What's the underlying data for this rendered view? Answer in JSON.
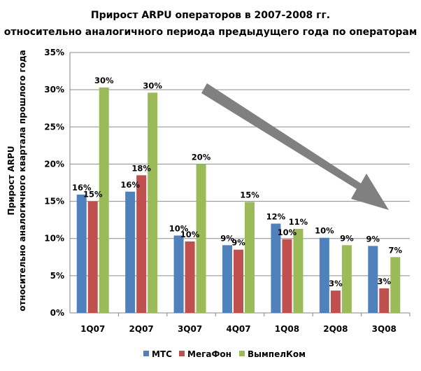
{
  "chart_data": {
    "type": "bar",
    "title": [
      "Прирост ARPU операторов в 2007-2008 гг.",
      "относительно аналогичного периода предыдущего года по операторам"
    ],
    "xlabel": "",
    "ylabel": [
      "Прирост ARPU",
      "относительно аналогичного квартала прошлого года"
    ],
    "categories": [
      "1Q07",
      "2Q07",
      "3Q07",
      "4Q07",
      "1Q08",
      "2Q08",
      "3Q08"
    ],
    "ylim": [
      0,
      0.35
    ],
    "yticks": [
      0,
      0.05,
      0.1,
      0.15,
      0.2,
      0.25,
      0.3,
      0.35
    ],
    "ytick_labels": [
      "0%",
      "5%",
      "10%",
      "15%",
      "20%",
      "25%",
      "30%",
      "35%"
    ],
    "grid": true,
    "legend_position": "bottom",
    "series": [
      {
        "name": "МТС",
        "color": "#4f81bd",
        "values": [
          0.159,
          0.163,
          0.104,
          0.091,
          0.12,
          0.101,
          0.09
        ],
        "labels": [
          "16%",
          "16%",
          "10%",
          "9%",
          "12%",
          "10%",
          "9%"
        ]
      },
      {
        "name": "МегаФон",
        "color": "#c0504d",
        "values": [
          0.15,
          0.185,
          0.096,
          0.085,
          0.099,
          0.03,
          0.033
        ],
        "labels": [
          "15%",
          "18%",
          "10%",
          "9%",
          "10%",
          "3%",
          "3%"
        ]
      },
      {
        "name": "ВымпелКом",
        "color": "#9bbb59",
        "values": [
          0.303,
          0.296,
          0.2,
          0.149,
          0.113,
          0.091,
          0.075
        ],
        "labels": [
          "30%",
          "30%",
          "20%",
          "15%",
          "11%",
          "9%",
          "7%"
        ]
      }
    ],
    "annotations": [
      {
        "type": "arrow",
        "color": "#808080",
        "direction": "down-right"
      }
    ]
  }
}
